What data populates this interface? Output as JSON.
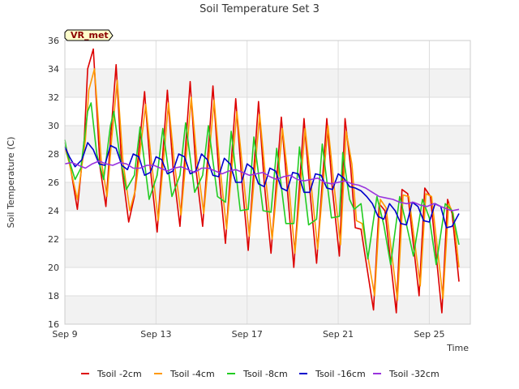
{
  "chart_data": {
    "type": "line",
    "title": "Soil Temperature Set 3",
    "xlabel": "Time",
    "ylabel": "Soil Temperature (C)",
    "badge": "VR_met",
    "x_unit": "day of September",
    "xlim": [
      9,
      26.8
    ],
    "ylim": [
      16,
      36
    ],
    "y_ticks": [
      16,
      18,
      20,
      22,
      24,
      26,
      28,
      30,
      32,
      34,
      36
    ],
    "x_ticks": [
      {
        "value": 9,
        "label": "Sep 9"
      },
      {
        "value": 13,
        "label": "Sep 13"
      },
      {
        "value": 17,
        "label": "Sep 17"
      },
      {
        "value": 21,
        "label": "Sep 21"
      },
      {
        "value": 25,
        "label": "Sep 25"
      }
    ],
    "grid": true,
    "band_shading": true,
    "legend_position": "bottom",
    "series": [
      {
        "name": "Tsoil -2cm",
        "color": "#dd0000",
        "x": [
          9.0,
          9.2,
          9.55,
          9.85,
          10.0,
          10.25,
          10.55,
          10.8,
          11.0,
          11.25,
          11.5,
          11.8,
          12.05,
          12.5,
          12.75,
          13.05,
          13.5,
          13.75,
          14.05,
          14.5,
          14.75,
          15.05,
          15.5,
          15.75,
          16.05,
          16.5,
          16.75,
          17.05,
          17.5,
          17.75,
          18.05,
          18.5,
          18.75,
          19.05,
          19.5,
          19.75,
          20.05,
          20.5,
          20.75,
          21.05,
          21.3,
          21.55,
          21.75,
          22.0,
          22.55,
          22.8,
          23.05,
          23.55,
          23.8,
          24.05,
          24.55,
          24.8,
          25.05,
          25.55,
          25.8,
          26.0,
          26.3
        ],
        "y": [
          28.8,
          27.5,
          24.1,
          29.0,
          34.0,
          35.4,
          27.0,
          24.3,
          29.0,
          34.3,
          27.0,
          23.2,
          25.0,
          32.4,
          27.0,
          22.5,
          32.5,
          27.0,
          22.9,
          33.1,
          27.0,
          22.9,
          32.8,
          26.8,
          21.7,
          31.9,
          26.5,
          21.2,
          31.7,
          26.0,
          21.0,
          30.6,
          25.8,
          20.0,
          30.5,
          25.5,
          20.3,
          30.5,
          25.4,
          20.8,
          30.5,
          27.0,
          22.8,
          22.7,
          17.0,
          24.5,
          24.0,
          16.8,
          25.5,
          25.2,
          18.0,
          25.6,
          25.0,
          16.8,
          24.8,
          23.8,
          19.0
        ]
      },
      {
        "name": "Tsoil -4cm",
        "color": "#ff9900",
        "x": [
          9.0,
          9.2,
          9.55,
          9.9,
          10.05,
          10.3,
          10.6,
          10.85,
          11.05,
          11.3,
          11.55,
          11.85,
          12.1,
          12.55,
          12.8,
          13.1,
          13.55,
          13.8,
          14.1,
          14.55,
          14.8,
          15.1,
          15.55,
          15.8,
          16.1,
          16.55,
          16.8,
          17.1,
          17.55,
          17.8,
          18.1,
          18.55,
          18.8,
          19.1,
          19.55,
          19.8,
          20.1,
          20.55,
          20.8,
          21.1,
          21.35,
          21.6,
          21.8,
          22.05,
          22.6,
          22.85,
          23.1,
          23.6,
          23.85,
          24.1,
          24.6,
          24.85,
          25.1,
          25.6,
          25.85,
          26.05,
          26.3
        ],
        "y": [
          28.5,
          27.3,
          24.8,
          29.0,
          32.5,
          34.0,
          27.5,
          25.0,
          29.0,
          33.2,
          27.5,
          24.0,
          25.5,
          31.5,
          27.5,
          23.3,
          31.6,
          27.5,
          23.7,
          32.0,
          27.5,
          23.8,
          31.8,
          27.2,
          22.7,
          31.0,
          27.0,
          22.2,
          30.8,
          26.5,
          22.0,
          29.8,
          26.3,
          21.0,
          29.8,
          26.0,
          21.3,
          30.0,
          26.0,
          21.6,
          29.6,
          27.3,
          23.3,
          23.1,
          18.0,
          24.8,
          24.2,
          17.7,
          25.1,
          25.0,
          18.7,
          25.2,
          25.0,
          17.8,
          24.5,
          23.8,
          20.0
        ]
      },
      {
        "name": "Tsoil -8cm",
        "color": "#22cc22",
        "x": [
          9.0,
          9.1,
          9.45,
          9.7,
          10.0,
          10.15,
          10.4,
          10.7,
          11.0,
          11.15,
          11.4,
          11.7,
          12.05,
          12.3,
          12.7,
          13.05,
          13.3,
          13.7,
          14.05,
          14.3,
          14.7,
          15.05,
          15.3,
          15.7,
          16.05,
          16.3,
          16.7,
          17.05,
          17.3,
          17.7,
          18.05,
          18.3,
          18.7,
          19.05,
          19.3,
          19.7,
          20.05,
          20.3,
          20.7,
          21.05,
          21.2,
          21.5,
          21.7,
          22.0,
          22.3,
          22.7,
          23.0,
          23.3,
          23.7,
          24.0,
          24.3,
          24.7,
          25.0,
          25.3,
          25.7,
          26.0,
          26.3
        ],
        "y": [
          29.0,
          28.0,
          26.2,
          27.0,
          31.0,
          31.6,
          28.0,
          26.2,
          30.0,
          31.0,
          28.0,
          25.5,
          26.5,
          29.9,
          24.8,
          26.5,
          29.8,
          25.0,
          26.5,
          30.2,
          25.3,
          26.5,
          30.0,
          25.0,
          24.6,
          29.6,
          24.0,
          24.1,
          29.2,
          24.0,
          23.9,
          28.4,
          23.1,
          23.1,
          28.5,
          23.0,
          23.4,
          28.7,
          23.5,
          23.6,
          28.1,
          24.8,
          24.1,
          24.5,
          20.6,
          25.0,
          23.0,
          20.2,
          25.0,
          23.0,
          20.8,
          24.8,
          23.5,
          20.2,
          24.5,
          24.0,
          21.6
        ]
      },
      {
        "name": "Tsoil -16cm",
        "color": "#0000cc",
        "x": [
          9.0,
          9.2,
          9.45,
          9.75,
          10.0,
          10.25,
          10.5,
          10.75,
          11.0,
          11.25,
          11.5,
          11.75,
          12.0,
          12.25,
          12.5,
          12.75,
          13.0,
          13.25,
          13.5,
          13.75,
          14.0,
          14.25,
          14.5,
          14.75,
          15.0,
          15.25,
          15.5,
          15.75,
          16.0,
          16.25,
          16.5,
          16.75,
          17.0,
          17.25,
          17.5,
          17.75,
          18.0,
          18.25,
          18.5,
          18.75,
          19.0,
          19.25,
          19.5,
          19.75,
          20.0,
          20.25,
          20.5,
          20.75,
          21.0,
          21.25,
          21.5,
          21.75,
          22.0,
          22.25,
          22.5,
          22.75,
          23.0,
          23.25,
          23.5,
          23.75,
          24.0,
          24.25,
          24.5,
          24.75,
          25.0,
          25.25,
          25.5,
          25.75,
          26.0,
          26.3
        ],
        "y": [
          28.5,
          27.8,
          27.1,
          27.6,
          28.8,
          28.3,
          27.3,
          27.2,
          28.6,
          28.4,
          27.2,
          26.9,
          28.0,
          27.8,
          26.5,
          26.7,
          27.8,
          27.6,
          26.6,
          26.8,
          28.0,
          27.8,
          26.6,
          26.8,
          28.0,
          27.6,
          26.5,
          26.4,
          27.7,
          27.3,
          26.0,
          26.0,
          27.3,
          27.0,
          25.9,
          25.7,
          27.0,
          26.8,
          25.6,
          25.4,
          26.7,
          26.6,
          25.3,
          25.3,
          26.6,
          26.5,
          25.6,
          25.5,
          26.6,
          26.3,
          25.7,
          25.6,
          25.4,
          25.0,
          24.5,
          23.6,
          23.4,
          24.5,
          24.0,
          23.1,
          23.0,
          24.6,
          24.3,
          23.3,
          23.2,
          24.5,
          24.3,
          22.8,
          22.9,
          23.8
        ]
      },
      {
        "name": "Tsoil -32cm",
        "color": "#9933dd",
        "x": [
          9.0,
          9.3,
          9.6,
          9.9,
          10.2,
          10.5,
          10.8,
          11.1,
          11.4,
          11.7,
          12.0,
          12.3,
          12.6,
          12.9,
          13.2,
          13.5,
          13.8,
          14.1,
          14.4,
          14.7,
          15.0,
          15.3,
          15.6,
          15.9,
          16.2,
          16.5,
          16.8,
          17.1,
          17.4,
          17.7,
          18.0,
          18.3,
          18.6,
          18.9,
          19.2,
          19.5,
          19.8,
          20.1,
          20.4,
          20.7,
          21.0,
          21.3,
          21.6,
          21.9,
          22.2,
          22.5,
          22.8,
          23.1,
          23.4,
          23.7,
          24.0,
          24.3,
          24.6,
          24.9,
          25.2,
          25.5,
          25.8,
          26.0,
          26.3
        ],
        "y": [
          27.3,
          27.4,
          27.2,
          27.0,
          27.3,
          27.5,
          27.3,
          27.2,
          27.4,
          27.3,
          27.0,
          27.0,
          27.2,
          27.2,
          27.0,
          26.8,
          27.0,
          27.1,
          26.9,
          26.7,
          27.0,
          27.0,
          26.8,
          26.6,
          26.8,
          26.9,
          26.7,
          26.5,
          26.6,
          26.7,
          26.4,
          26.2,
          26.4,
          26.5,
          26.2,
          26.1,
          26.2,
          26.3,
          26.0,
          25.9,
          26.0,
          26.1,
          25.9,
          25.8,
          25.6,
          25.3,
          25.0,
          24.9,
          24.8,
          24.6,
          24.5,
          24.6,
          24.4,
          24.3,
          24.5,
          24.3,
          24.1,
          24.0,
          24.1
        ]
      }
    ]
  }
}
